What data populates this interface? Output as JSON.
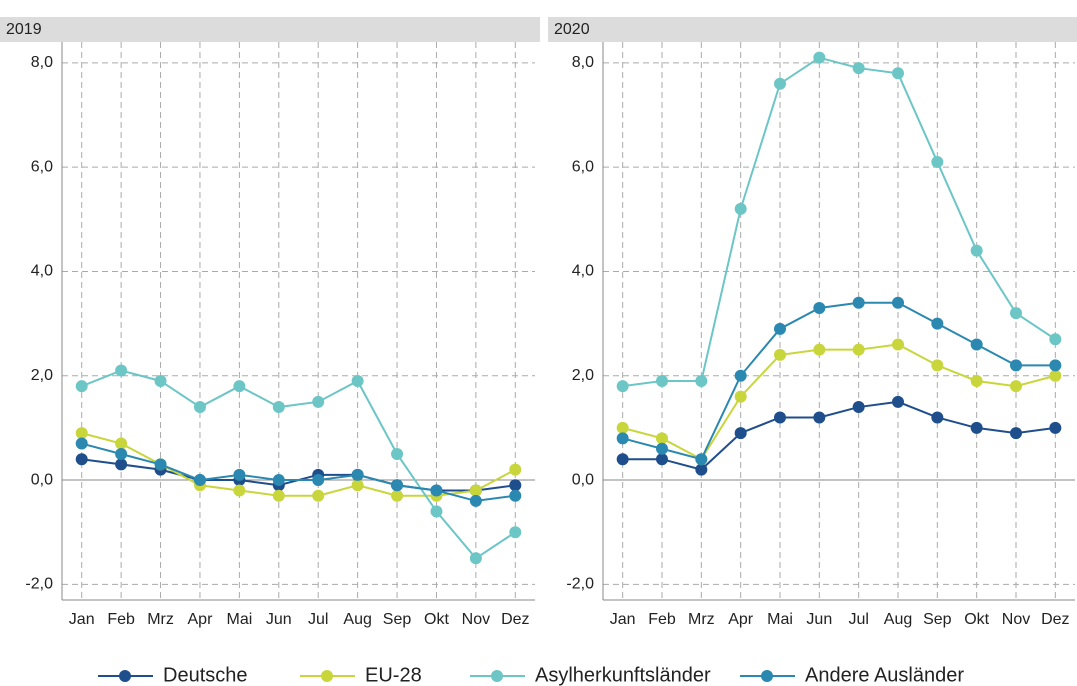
{
  "chart_data": [
    {
      "type": "line",
      "title": "2019",
      "categories": [
        "Jan",
        "Feb",
        "Mrz",
        "Apr",
        "Mai",
        "Jun",
        "Jul",
        "Aug",
        "Sep",
        "Okt",
        "Nov",
        "Dez"
      ],
      "series": [
        {
          "name": "Deutsche",
          "color": "#1f4e8c",
          "values": [
            0.4,
            0.3,
            0.2,
            0.0,
            0.0,
            -0.1,
            0.1,
            0.1,
            -0.1,
            -0.2,
            -0.2,
            -0.1
          ]
        },
        {
          "name": "EU-28",
          "color": "#c8d63c",
          "values": [
            0.9,
            0.7,
            0.3,
            -0.1,
            -0.2,
            -0.3,
            -0.3,
            -0.1,
            -0.3,
            -0.3,
            -0.2,
            0.2
          ]
        },
        {
          "name": "Asylherkunftsländer",
          "color": "#6cc6c6",
          "values": [
            1.8,
            2.1,
            1.9,
            1.4,
            1.8,
            1.4,
            1.5,
            1.9,
            0.5,
            -0.6,
            -1.5,
            -1.0
          ]
        },
        {
          "name": "Andere Ausländer",
          "color": "#2b88b0",
          "values": [
            0.7,
            0.5,
            0.3,
            0.0,
            0.1,
            0.0,
            0.0,
            0.1,
            -0.1,
            -0.2,
            -0.4,
            -0.3
          ]
        }
      ],
      "ylim": [
        -2.3,
        8.4
      ],
      "yticks": [
        {
          "value": -2,
          "label": "-2,0"
        },
        {
          "value": 0,
          "label": "0,0"
        },
        {
          "value": 2,
          "label": "2,0"
        },
        {
          "value": 4,
          "label": "4,0"
        },
        {
          "value": 6,
          "label": "6,0"
        },
        {
          "value": 8,
          "label": "8,0"
        }
      ],
      "grid": true
    },
    {
      "type": "line",
      "title": "2020",
      "categories": [
        "Jan",
        "Feb",
        "Mrz",
        "Apr",
        "Mai",
        "Jun",
        "Jul",
        "Aug",
        "Sep",
        "Okt",
        "Nov",
        "Dez"
      ],
      "series": [
        {
          "name": "Deutsche",
          "color": "#1f4e8c",
          "values": [
            0.4,
            0.4,
            0.2,
            0.9,
            1.2,
            1.2,
            1.4,
            1.5,
            1.2,
            1.0,
            0.9,
            1.0
          ]
        },
        {
          "name": "EU-28",
          "color": "#c8d63c",
          "values": [
            1.0,
            0.8,
            0.4,
            1.6,
            2.4,
            2.5,
            2.5,
            2.6,
            2.2,
            1.9,
            1.8,
            2.0
          ]
        },
        {
          "name": "Asylherkunftsländer",
          "color": "#6cc6c6",
          "values": [
            1.8,
            1.9,
            1.9,
            5.2,
            7.6,
            8.1,
            7.9,
            7.8,
            6.1,
            4.4,
            3.2,
            2.7
          ]
        },
        {
          "name": "Andere Ausländer",
          "color": "#2b88b0",
          "values": [
            0.8,
            0.6,
            0.4,
            2.0,
            2.9,
            3.3,
            3.4,
            3.4,
            3.0,
            2.6,
            2.2,
            2.2
          ]
        }
      ],
      "ylim": [
        -2.3,
        8.4
      ],
      "yticks": [
        {
          "value": -2,
          "label": "-2,0"
        },
        {
          "value": 0,
          "label": "0,0"
        },
        {
          "value": 2,
          "label": "2,0"
        },
        {
          "value": 4,
          "label": "4,0"
        },
        {
          "value": 6,
          "label": "6,0"
        },
        {
          "value": 8,
          "label": "8,0"
        }
      ],
      "grid": true
    }
  ]
}
